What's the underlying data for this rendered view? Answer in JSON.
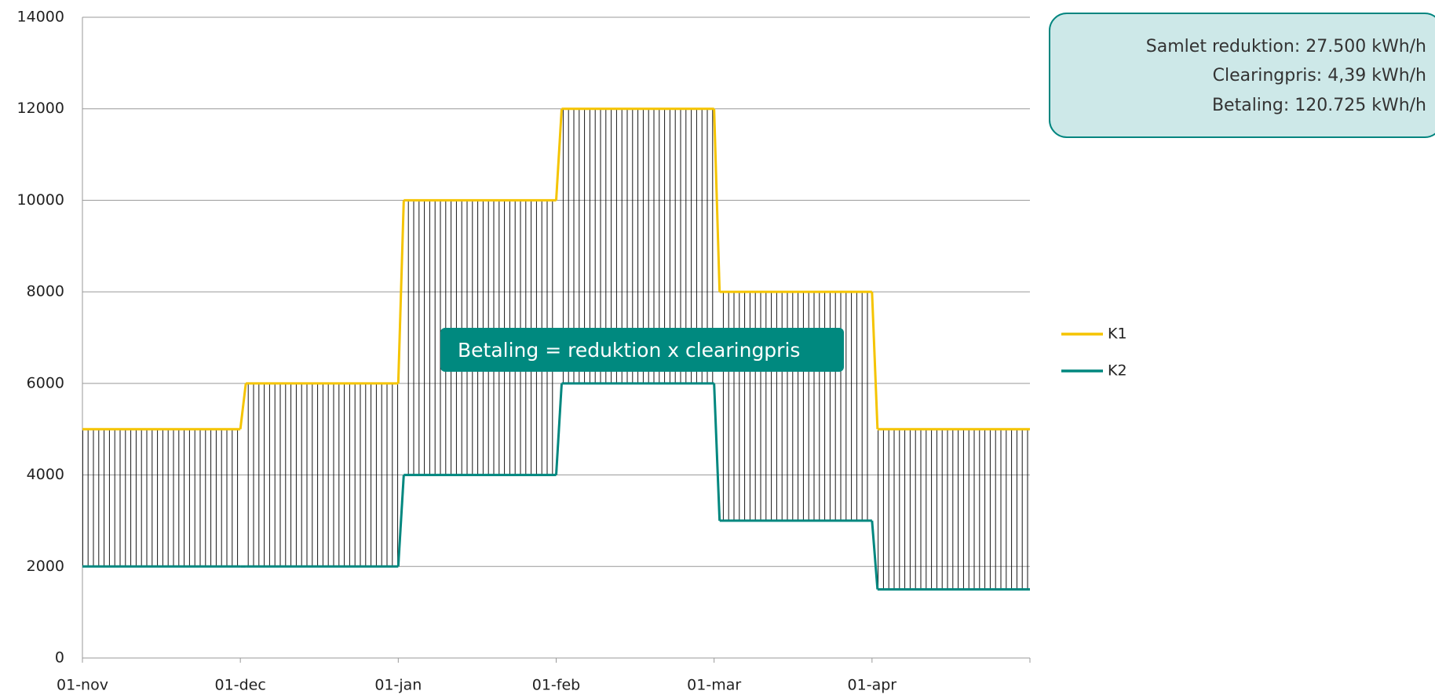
{
  "chart_data": {
    "type": "step-line",
    "categories": [
      "01-nov",
      "01-dec",
      "01-jan",
      "01-feb",
      "01-mar",
      "01-apr"
    ],
    "series": [
      {
        "name": "K1",
        "color": "#f5c400",
        "values": [
          5000,
          6000,
          10000,
          12000,
          8000,
          5000
        ]
      },
      {
        "name": "K2",
        "color": "#00877f",
        "values": [
          2000,
          2000,
          4000,
          6000,
          3000,
          1500
        ]
      }
    ],
    "ylim": [
      0,
      14000
    ],
    "yticks": [
      0,
      2000,
      4000,
      6000,
      8000,
      10000,
      12000,
      14000
    ],
    "grid": true,
    "hatch_between_series": true,
    "annotation": "Betaling = reduktion x clearingpris",
    "info_box": [
      "Samlet reduktion: 27.500 kWh/h",
      "Clearingpris: 4,39 kWh/h",
      "Betaling: 120.725 kWh/h"
    ],
    "legend": "right"
  }
}
